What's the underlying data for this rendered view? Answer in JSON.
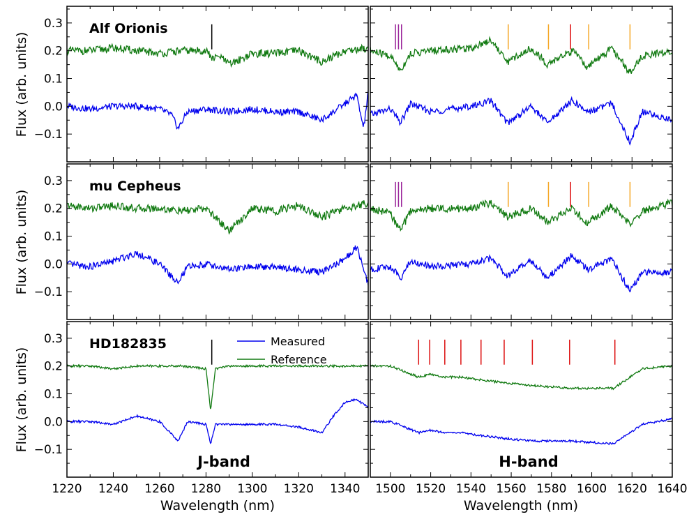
{
  "figure": {
    "ylabel": "Flux (arb. units)",
    "xlabel": "Wavelength (nm)",
    "panel_labels": [
      "Alf Orionis",
      "mu Cepheus",
      "HD182835"
    ],
    "band_labels": [
      "J-band",
      "H-band"
    ],
    "legend": [
      "Measured",
      "Reference"
    ],
    "colors": {
      "measured": "#0000ee",
      "reference": "#117a11",
      "marker_black": "#000000",
      "marker_orange": "#f5a623",
      "marker_red": "#dd1111",
      "marker_purple": "#992299"
    }
  },
  "chart_data": [
    {
      "type": "line",
      "panel": "Alf Orionis (J-band)",
      "xlim": [
        1220,
        1350
      ],
      "ylim": [
        -0.2,
        0.36
      ],
      "xticks": [
        1220,
        1240,
        1260,
        1280,
        1300,
        1320,
        1340
      ],
      "yticks": [
        -0.1,
        0.0,
        0.1,
        0.2,
        0.3
      ],
      "series": [
        {
          "name": "Reference",
          "x": [
            1220,
            1230,
            1240,
            1250,
            1260,
            1270,
            1280,
            1283,
            1286,
            1290,
            1300,
            1310,
            1320,
            1330,
            1335,
            1340,
            1350
          ],
          "values": [
            0.2,
            0.2,
            0.21,
            0.2,
            0.19,
            0.2,
            0.2,
            0.17,
            0.18,
            0.15,
            0.19,
            0.19,
            0.2,
            0.16,
            0.18,
            0.2,
            0.21
          ]
        },
        {
          "name": "Measured",
          "x": [
            1220,
            1230,
            1240,
            1250,
            1260,
            1265,
            1268,
            1272,
            1280,
            1290,
            1300,
            1310,
            1320,
            1330,
            1340,
            1345,
            1348,
            1350
          ],
          "values": [
            0.0,
            -0.01,
            0.0,
            0.0,
            -0.01,
            -0.03,
            -0.08,
            -0.02,
            -0.01,
            -0.02,
            -0.01,
            -0.02,
            -0.02,
            -0.05,
            0.01,
            0.04,
            -0.08,
            0.05
          ]
        }
      ],
      "markers": [
        {
          "x": 1282.5,
          "color": "black"
        }
      ]
    },
    {
      "type": "line",
      "panel": "Alf Orionis (H-band)",
      "xlim": [
        1490,
        1640
      ],
      "ylim": [
        -0.2,
        0.36
      ],
      "xticks": [
        1500,
        1520,
        1540,
        1560,
        1580,
        1600,
        1620,
        1640
      ],
      "yticks": [
        -0.1,
        0.0,
        0.1,
        0.2,
        0.3
      ],
      "series": [
        {
          "name": "Reference",
          "x": [
            1490,
            1500,
            1505,
            1510,
            1520,
            1540,
            1550,
            1558,
            1570,
            1578,
            1590,
            1598,
            1610,
            1619,
            1625,
            1640
          ],
          "values": [
            0.2,
            0.18,
            0.13,
            0.19,
            0.2,
            0.21,
            0.24,
            0.16,
            0.21,
            0.15,
            0.2,
            0.14,
            0.21,
            0.12,
            0.18,
            0.2
          ]
        },
        {
          "name": "Measured",
          "x": [
            1490,
            1500,
            1505,
            1510,
            1520,
            1540,
            1550,
            1558,
            1570,
            1578,
            1590,
            1598,
            1610,
            1619,
            1625,
            1640
          ],
          "values": [
            -0.03,
            -0.01,
            -0.06,
            0.01,
            -0.02,
            0.0,
            0.02,
            -0.06,
            0.0,
            -0.06,
            0.02,
            -0.02,
            0.01,
            -0.13,
            -0.02,
            -0.05
          ]
        }
      ],
      "markers": [
        {
          "x": 1502.5,
          "color": "purple"
        },
        {
          "x": 1504.0,
          "color": "purple"
        },
        {
          "x": 1505.5,
          "color": "purple"
        },
        {
          "x": 1558.5,
          "color": "orange"
        },
        {
          "x": 1578.5,
          "color": "orange"
        },
        {
          "x": 1589.5,
          "color": "red"
        },
        {
          "x": 1598.5,
          "color": "orange"
        },
        {
          "x": 1619.0,
          "color": "orange"
        }
      ]
    },
    {
      "type": "line",
      "panel": "mu Cepheus (J-band)",
      "xlim": [
        1220,
        1350
      ],
      "ylim": [
        -0.2,
        0.36
      ],
      "xticks": [
        1220,
        1240,
        1260,
        1280,
        1300,
        1320,
        1340
      ],
      "yticks": [
        -0.1,
        0.0,
        0.1,
        0.2,
        0.3
      ],
      "series": [
        {
          "name": "Reference",
          "x": [
            1220,
            1230,
            1240,
            1250,
            1260,
            1270,
            1280,
            1290,
            1300,
            1310,
            1320,
            1330,
            1340,
            1350
          ],
          "values": [
            0.21,
            0.2,
            0.21,
            0.2,
            0.2,
            0.19,
            0.2,
            0.12,
            0.2,
            0.19,
            0.21,
            0.17,
            0.2,
            0.22
          ]
        },
        {
          "name": "Measured",
          "x": [
            1220,
            1230,
            1240,
            1250,
            1260,
            1268,
            1272,
            1280,
            1290,
            1300,
            1310,
            1320,
            1330,
            1340,
            1345,
            1350
          ],
          "values": [
            0.0,
            -0.01,
            0.01,
            0.04,
            0.0,
            -0.07,
            -0.01,
            0.0,
            -0.02,
            -0.01,
            -0.01,
            -0.02,
            -0.03,
            0.02,
            0.06,
            -0.07
          ]
        }
      ],
      "markers": []
    },
    {
      "type": "line",
      "panel": "mu Cepheus (H-band)",
      "xlim": [
        1490,
        1640
      ],
      "ylim": [
        -0.2,
        0.36
      ],
      "xticks": [
        1500,
        1520,
        1540,
        1560,
        1580,
        1600,
        1620,
        1640
      ],
      "yticks": [
        -0.1,
        0.0,
        0.1,
        0.2,
        0.3
      ],
      "series": [
        {
          "name": "Reference",
          "x": [
            1490,
            1500,
            1505,
            1510,
            1520,
            1540,
            1550,
            1558,
            1570,
            1578,
            1590,
            1598,
            1610,
            1619,
            1625,
            1640
          ],
          "values": [
            0.2,
            0.18,
            0.12,
            0.19,
            0.2,
            0.2,
            0.22,
            0.17,
            0.2,
            0.15,
            0.2,
            0.15,
            0.21,
            0.14,
            0.19,
            0.22
          ]
        },
        {
          "name": "Measured",
          "x": [
            1490,
            1500,
            1505,
            1510,
            1520,
            1540,
            1550,
            1558,
            1570,
            1578,
            1590,
            1598,
            1610,
            1619,
            1625,
            1640
          ],
          "values": [
            -0.02,
            -0.01,
            -0.05,
            0.01,
            -0.01,
            0.0,
            0.02,
            -0.04,
            0.01,
            -0.05,
            0.03,
            -0.02,
            0.02,
            -0.1,
            -0.03,
            -0.03
          ]
        }
      ],
      "markers": [
        {
          "x": 1502.5,
          "color": "purple"
        },
        {
          "x": 1504.0,
          "color": "purple"
        },
        {
          "x": 1505.5,
          "color": "purple"
        },
        {
          "x": 1558.5,
          "color": "orange"
        },
        {
          "x": 1578.5,
          "color": "orange"
        },
        {
          "x": 1589.5,
          "color": "red"
        },
        {
          "x": 1598.5,
          "color": "orange"
        },
        {
          "x": 1619.0,
          "color": "orange"
        }
      ]
    },
    {
      "type": "line",
      "panel": "HD182835 (J-band)",
      "xlim": [
        1220,
        1350
      ],
      "ylim": [
        -0.2,
        0.36
      ],
      "xticks": [
        1220,
        1240,
        1260,
        1280,
        1300,
        1320,
        1340
      ],
      "yticks": [
        -0.1,
        0.0,
        0.1,
        0.2,
        0.3
      ],
      "series": [
        {
          "name": "Measured",
          "x": [
            1220,
            1230,
            1240,
            1250,
            1260,
            1268,
            1272,
            1280,
            1282,
            1284,
            1290,
            1300,
            1310,
            1320,
            1330,
            1335,
            1340,
            1345,
            1350
          ],
          "values": [
            0.0,
            0.0,
            -0.01,
            0.02,
            0.0,
            -0.07,
            0.0,
            -0.01,
            -0.08,
            -0.01,
            -0.01,
            -0.01,
            -0.01,
            -0.02,
            -0.04,
            0.02,
            0.07,
            0.08,
            0.05
          ]
        },
        {
          "name": "Reference",
          "x": [
            1220,
            1230,
            1240,
            1250,
            1260,
            1270,
            1280,
            1282,
            1284,
            1290,
            1300,
            1310,
            1320,
            1330,
            1340,
            1350
          ],
          "values": [
            0.2,
            0.2,
            0.19,
            0.2,
            0.2,
            0.2,
            0.19,
            0.04,
            0.19,
            0.2,
            0.2,
            0.2,
            0.2,
            0.2,
            0.2,
            0.2
          ]
        }
      ],
      "markers": [
        {
          "x": 1282.5,
          "color": "black"
        }
      ]
    },
    {
      "type": "line",
      "panel": "HD182835 (H-band)",
      "xlim": [
        1490,
        1640
      ],
      "ylim": [
        -0.2,
        0.36
      ],
      "xticks": [
        1500,
        1520,
        1540,
        1560,
        1580,
        1600,
        1620,
        1640
      ],
      "yticks": [
        -0.1,
        0.0,
        0.1,
        0.2,
        0.3
      ],
      "series": [
        {
          "name": "Reference",
          "x": [
            1490,
            1500,
            1514,
            1519,
            1527,
            1535,
            1545,
            1556,
            1570,
            1589,
            1611,
            1625,
            1640
          ],
          "values": [
            0.2,
            0.2,
            0.16,
            0.17,
            0.16,
            0.16,
            0.15,
            0.14,
            0.13,
            0.12,
            0.12,
            0.19,
            0.2
          ]
        },
        {
          "name": "Measured",
          "x": [
            1490,
            1500,
            1514,
            1519,
            1527,
            1535,
            1545,
            1556,
            1570,
            1589,
            1611,
            1625,
            1640
          ],
          "values": [
            0.0,
            0.0,
            -0.04,
            -0.03,
            -0.04,
            -0.04,
            -0.05,
            -0.06,
            -0.07,
            -0.07,
            -0.08,
            -0.01,
            0.01
          ]
        }
      ],
      "markers": [
        {
          "x": 1514.0,
          "color": "red"
        },
        {
          "x": 1519.5,
          "color": "red"
        },
        {
          "x": 1527.0,
          "color": "red"
        },
        {
          "x": 1535.0,
          "color": "red"
        },
        {
          "x": 1545.0,
          "color": "red"
        },
        {
          "x": 1556.5,
          "color": "red"
        },
        {
          "x": 1570.5,
          "color": "red"
        },
        {
          "x": 1589.0,
          "color": "red"
        },
        {
          "x": 1611.5,
          "color": "red"
        }
      ]
    }
  ]
}
